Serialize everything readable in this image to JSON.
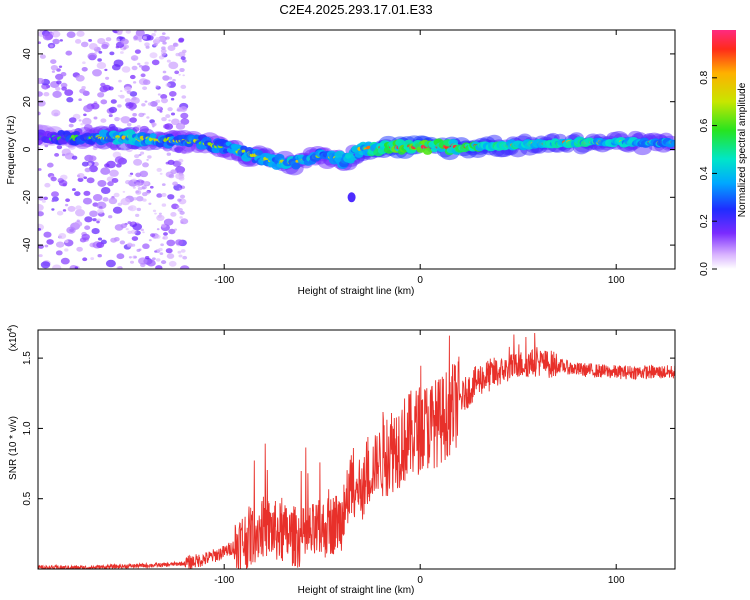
{
  "title": "C2E4.2025.293.17.01.E33",
  "chart_data": [
    {
      "type": "heatmap",
      "name": "spectrogram",
      "xlabel": "Height of straight line (km)",
      "ylabel": "Frequency (Hz)",
      "xlim": [
        -195,
        130
      ],
      "ylim": [
        -50,
        50
      ],
      "xticks": [
        "-100",
        "0",
        "100"
      ],
      "xtick_values": [
        -100,
        0,
        100
      ],
      "yticks": [
        "40",
        "20",
        "0",
        "-20",
        "-40"
      ],
      "ytick_values": [
        40,
        20,
        0,
        -20,
        -40
      ],
      "colorbar": {
        "label": "Normalized spectral amplitude",
        "ticks": [
          "0.0",
          "0.2",
          "0.4",
          "0.6",
          "0.8"
        ],
        "tick_values": [
          0.0,
          0.2,
          0.4,
          0.6,
          0.8
        ],
        "range": [
          0,
          1
        ]
      },
      "ridge": [
        {
          "x": -190,
          "freq": 5,
          "amp": 0.25
        },
        {
          "x": -170,
          "freq": 5,
          "amp": 0.4
        },
        {
          "x": -150,
          "freq": 5,
          "amp": 0.55
        },
        {
          "x": -130,
          "freq": 4,
          "amp": 0.45
        },
        {
          "x": -110,
          "freq": 3,
          "amp": 0.4
        },
        {
          "x": -95,
          "freq": 0,
          "amp": 0.45
        },
        {
          "x": -80,
          "freq": -4,
          "amp": 0.5
        },
        {
          "x": -65,
          "freq": -6,
          "amp": 0.5
        },
        {
          "x": -50,
          "freq": -2,
          "amp": 0.45
        },
        {
          "x": -38,
          "freq": -5,
          "amp": 0.5
        },
        {
          "x": -30,
          "freq": 0,
          "amp": 0.55
        },
        {
          "x": -15,
          "freq": 1,
          "amp": 0.75
        },
        {
          "x": 0,
          "freq": 1,
          "amp": 0.75
        },
        {
          "x": 20,
          "freq": 1,
          "amp": 0.7
        },
        {
          "x": 50,
          "freq": 2,
          "amp": 0.6
        },
        {
          "x": 80,
          "freq": 3,
          "amp": 0.6
        },
        {
          "x": 100,
          "freq": 3,
          "amp": 0.55
        },
        {
          "x": 130,
          "freq": 3,
          "amp": 0.5
        }
      ],
      "isolated_spot": {
        "x": -35,
        "freq": -20,
        "amp": 0.2
      }
    },
    {
      "type": "line",
      "name": "snr",
      "xlabel": "Height of straight line (km)",
      "ylabel": "SNR (10 * v/v)",
      "ylabel_scale": "(x10",
      "ylabel_exponent": "4",
      "xlim": [
        -195,
        130
      ],
      "ylim": [
        0,
        1.7
      ],
      "xticks": [
        "-100",
        "0",
        "100"
      ],
      "xtick_values": [
        -100,
        0,
        100
      ],
      "yticks": [
        "0.5",
        "1.0",
        "1.5"
      ],
      "ytick_values": [
        0.5,
        1.0,
        1.5
      ],
      "series": [
        {
          "name": "SNR",
          "color": "#e8302a",
          "x": [
            -195,
            -170,
            -150,
            -130,
            -120,
            -110,
            -100,
            -90,
            -80,
            -70,
            -60,
            -50,
            -40,
            -35,
            -30,
            -25,
            -20,
            -10,
            0,
            10,
            20,
            30,
            40,
            50,
            60,
            70,
            80,
            100,
            130
          ],
          "y": [
            0.01,
            0.01,
            0.02,
            0.03,
            0.04,
            0.07,
            0.12,
            0.2,
            0.3,
            0.25,
            0.22,
            0.28,
            0.35,
            0.6,
            0.55,
            0.7,
            0.8,
            0.9,
            1.0,
            1.05,
            1.2,
            1.35,
            1.4,
            1.45,
            1.47,
            1.45,
            1.42,
            1.4,
            1.4
          ]
        }
      ]
    }
  ]
}
